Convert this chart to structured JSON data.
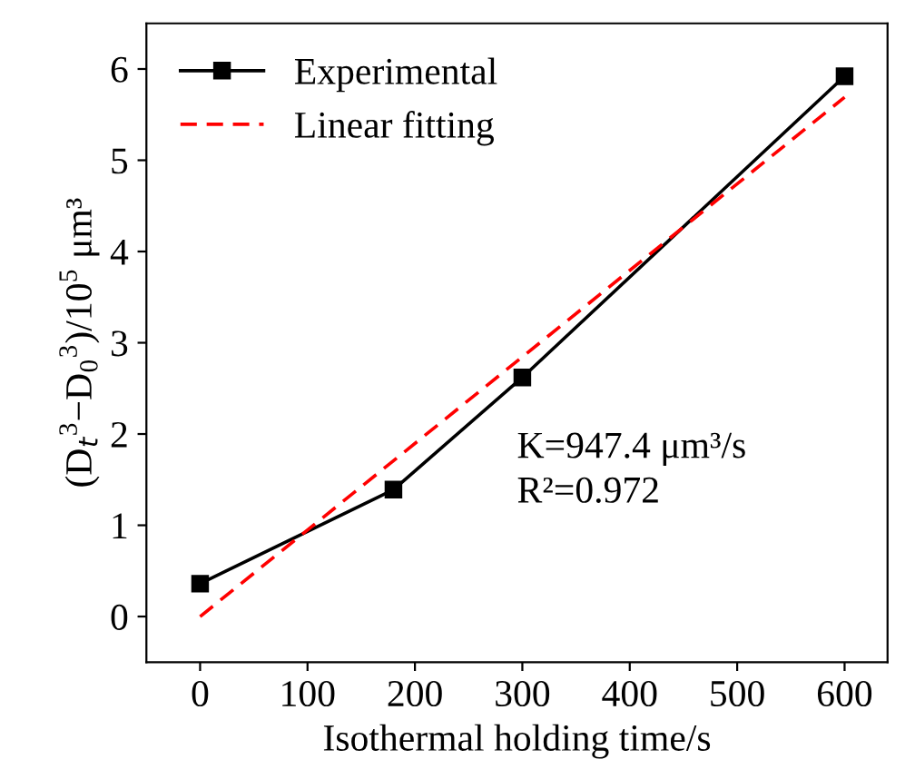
{
  "chart_data": {
    "type": "line",
    "xlabel": "Isothermal holding time/s",
    "ylabel": "(D$_{t}$$^{3}$−D$_{0}$$^{3}$)/10$^{5}$ μm³",
    "series": [
      {
        "name": "Experimental",
        "color": "#000000",
        "x": [
          0,
          180,
          300,
          600
        ],
        "values": [
          0.36,
          1.39,
          2.62,
          5.92
        ],
        "marker": "square",
        "line_style": "solid"
      },
      {
        "name": "Linear fitting",
        "color": "#ff0000",
        "type": "line",
        "x": [
          0,
          600
        ],
        "values": [
          0.0,
          5.69
        ],
        "marker": "none",
        "line_style": "dashed"
      }
    ],
    "xlim": [
      -50,
      640
    ],
    "xticks": [
      0,
      100,
      200,
      300,
      400,
      500,
      600
    ],
    "ylim": [
      -0.5,
      6.5
    ],
    "yticks": [
      0,
      1,
      2,
      3,
      4,
      5,
      6
    ],
    "annotations": [
      "K=947.4 μm³/s",
      "R²=0.972"
    ],
    "grid": false,
    "legend": "top left"
  }
}
